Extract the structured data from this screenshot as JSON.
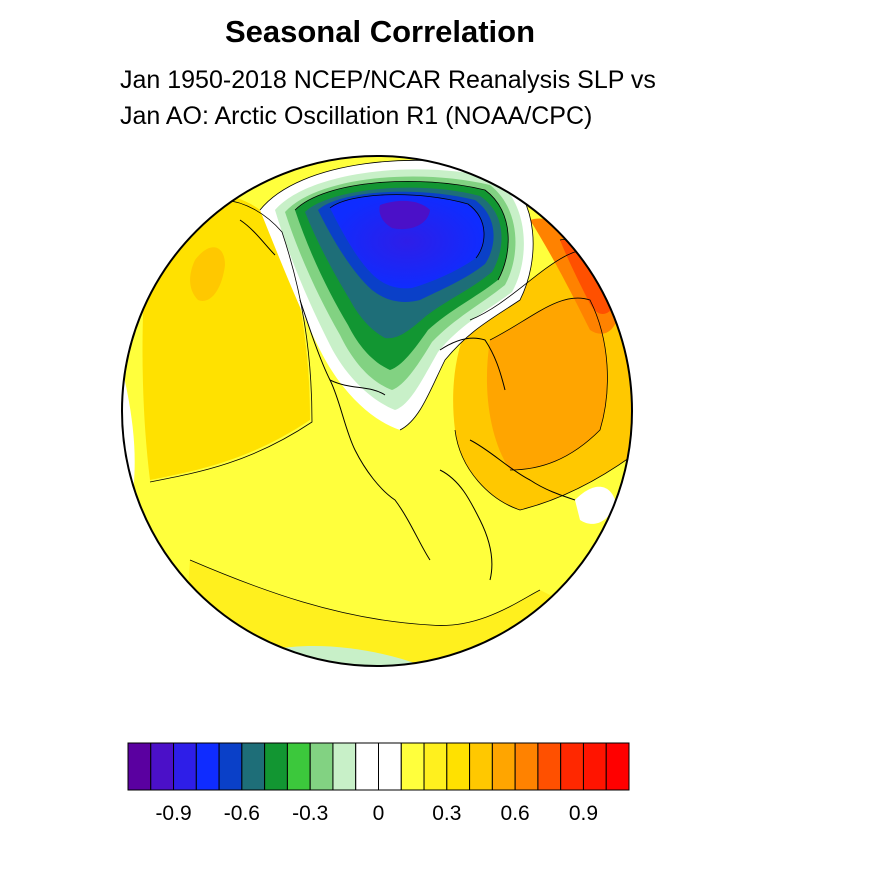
{
  "title": "Seasonal Correlation",
  "subtitle_line1": "Jan 1950-2018 NCEP/NCAR Reanalysis SLP vs",
  "subtitle_line2": "Jan AO: Arctic Oscillation R1 (NOAA/CPC)",
  "colorbar": {
    "colors": [
      "#5a00a0",
      "#4b10c8",
      "#2e1ee8",
      "#0f2cff",
      "#0a40c8",
      "#1e6e78",
      "#129632",
      "#3cc83c",
      "#82d282",
      "#c8f0c8",
      "#ffffff",
      "#ffffff",
      "#ffff3c",
      "#fff01e",
      "#ffe100",
      "#ffc800",
      "#ffa500",
      "#ff8200",
      "#ff5000",
      "#ff2800",
      "#ff1400",
      "#ff0000"
    ],
    "tick_labels": [
      "-0.9",
      "-0.6",
      "-0.3",
      "0",
      "0.3",
      "0.6",
      "0.9"
    ],
    "tick_values": [
      -0.9,
      -0.6,
      -0.3,
      0,
      0.3,
      0.6,
      0.9
    ],
    "range": [
      -1.1,
      1.1
    ]
  },
  "map": {
    "projection": "orthographic",
    "field_colors": {
      "strong_negative": "#0f2cff",
      "negative": "#129632",
      "weak_negative": "#c8f0c8",
      "near_zero": "#ffffff",
      "weak_positive": "#ffff3c",
      "positive": "#ffe100",
      "moderate_positive": "#ffa500",
      "strong_positive": "#ff5000"
    }
  }
}
